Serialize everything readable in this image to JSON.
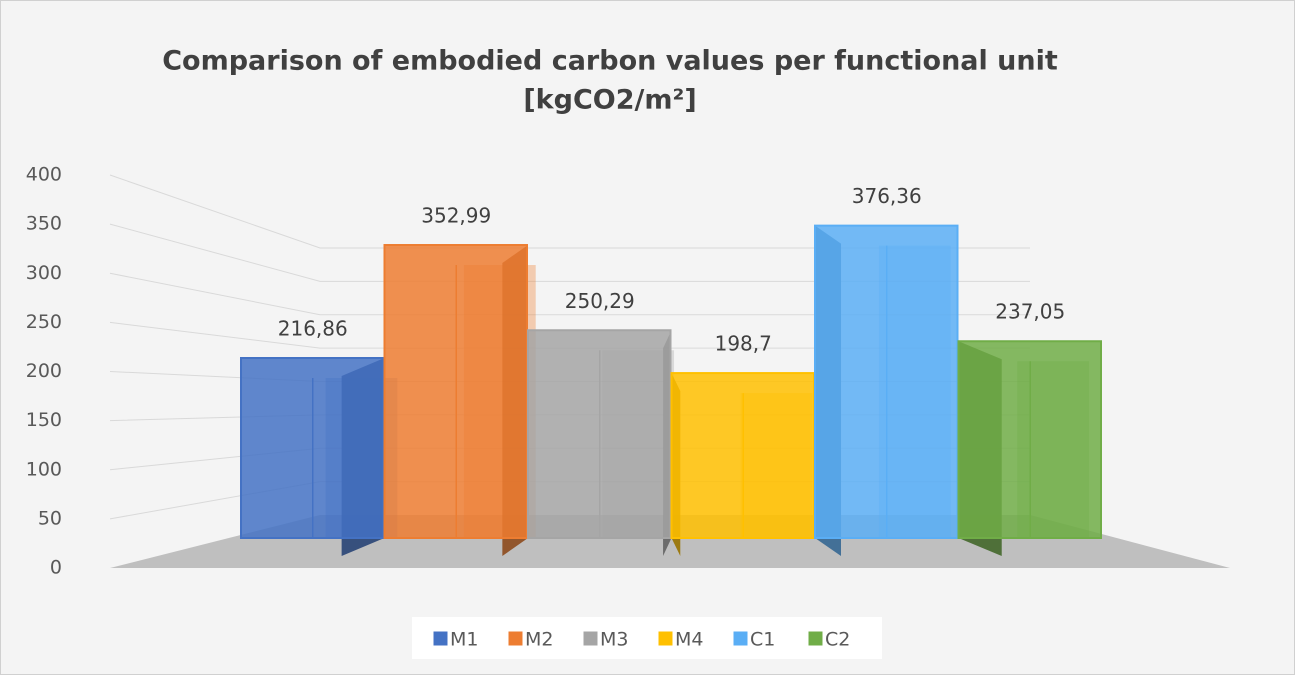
{
  "chart_data": {
    "type": "bar",
    "title": [
      "Comparison of embodied carbon values per functional unit",
      "[kgCO2/m²]"
    ],
    "series": [
      {
        "name": "M1",
        "color": "#4472c4",
        "values": [
          216.86
        ],
        "value_labels": [
          "216,86"
        ]
      },
      {
        "name": "M2",
        "color": "#ed7d31",
        "values": [
          352.99
        ],
        "value_labels": [
          "352,99"
        ]
      },
      {
        "name": "M3",
        "color": "#a5a5a5",
        "values": [
          250.29
        ],
        "value_labels": [
          "250,29"
        ]
      },
      {
        "name": "M4",
        "color": "#ffc000",
        "values": [
          198.7
        ],
        "value_labels": [
          "198,7"
        ]
      },
      {
        "name": "C1",
        "color": "#5aaef5",
        "values": [
          376.36
        ],
        "value_labels": [
          "376,36"
        ]
      },
      {
        "name": "C2",
        "color": "#70ad47",
        "values": [
          237.05
        ],
        "value_labels": [
          "237,05"
        ]
      }
    ],
    "ylim": [
      0,
      400
    ],
    "yticks": [
      0,
      50,
      100,
      150,
      200,
      250,
      300,
      350,
      400
    ],
    "grid": true,
    "legend": "bottom"
  }
}
